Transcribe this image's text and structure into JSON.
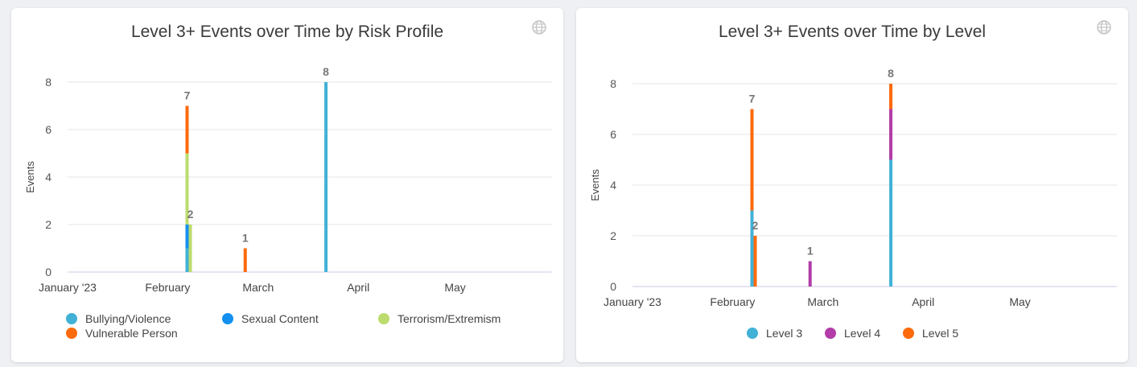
{
  "colors": {
    "Bullying/Violence": "#41b1d6",
    "Sexual Content": "#1490f0",
    "Terrorism/Extremism": "#bcdc6e",
    "Vulnerable Person": "#fd6a0c",
    "Level 3": "#41b1d6",
    "Level 4": "#b23ca8",
    "Level 5": "#fd6a0c"
  },
  "globe_icon": "globe-icon",
  "chart_data": [
    {
      "type": "bar",
      "stacked": true,
      "title": "Level 3+ Events over Time by Risk Profile",
      "ylabel": "Events",
      "ylim": [
        0,
        8
      ],
      "yticks": [
        0,
        2,
        4,
        6,
        8
      ],
      "xticks": [
        "January '23",
        "February",
        "March",
        "April",
        "May"
      ],
      "grid": true,
      "legend_position": "bottom",
      "legend": [
        "Bullying/Violence",
        "Sexual Content",
        "Terrorism/Extremism",
        "Vulnerable Person"
      ],
      "x_domain": [
        "2023-01-01",
        "2023-05-31"
      ],
      "groups": [
        {
          "date": "2023-02-07",
          "total": 7,
          "series": [
            {
              "name": "Bullying/Violence",
              "value": 1
            },
            {
              "name": "Sexual Content",
              "value": 1
            },
            {
              "name": "Terrorism/Extremism",
              "value": 3
            },
            {
              "name": "Vulnerable Person",
              "value": 2
            }
          ]
        },
        {
          "date": "2023-02-08",
          "total": 2,
          "series": [
            {
              "name": "Terrorism/Extremism",
              "value": 2
            }
          ]
        },
        {
          "date": "2023-02-25",
          "total": 1,
          "series": [
            {
              "name": "Vulnerable Person",
              "value": 1
            }
          ]
        },
        {
          "date": "2023-03-22",
          "total": 8,
          "series": [
            {
              "name": "Bullying/Violence",
              "value": 8
            }
          ]
        }
      ]
    },
    {
      "type": "bar",
      "stacked": true,
      "title": "Level 3+ Events over Time by Level",
      "ylabel": "Events",
      "ylim": [
        0,
        8
      ],
      "yticks": [
        0,
        2,
        4,
        6,
        8
      ],
      "xticks": [
        "January '23",
        "February",
        "March",
        "April",
        "May"
      ],
      "grid": true,
      "legend_position": "bottom",
      "legend": [
        "Level 3",
        "Level 4",
        "Level 5"
      ],
      "x_domain": [
        "2023-01-01",
        "2023-05-31"
      ],
      "groups": [
        {
          "date": "2023-02-07",
          "total": 7,
          "series": [
            {
              "name": "Level 3",
              "value": 3
            },
            {
              "name": "Level 5",
              "value": 4
            }
          ]
        },
        {
          "date": "2023-02-08",
          "total": 2,
          "series": [
            {
              "name": "Level 5",
              "value": 2
            }
          ]
        },
        {
          "date": "2023-02-25",
          "total": 1,
          "series": [
            {
              "name": "Level 4",
              "value": 1
            }
          ]
        },
        {
          "date": "2023-03-22",
          "total": 8,
          "series": [
            {
              "name": "Level 3",
              "value": 5
            },
            {
              "name": "Level 4",
              "value": 2
            },
            {
              "name": "Level 5",
              "value": 1
            }
          ]
        }
      ]
    }
  ]
}
